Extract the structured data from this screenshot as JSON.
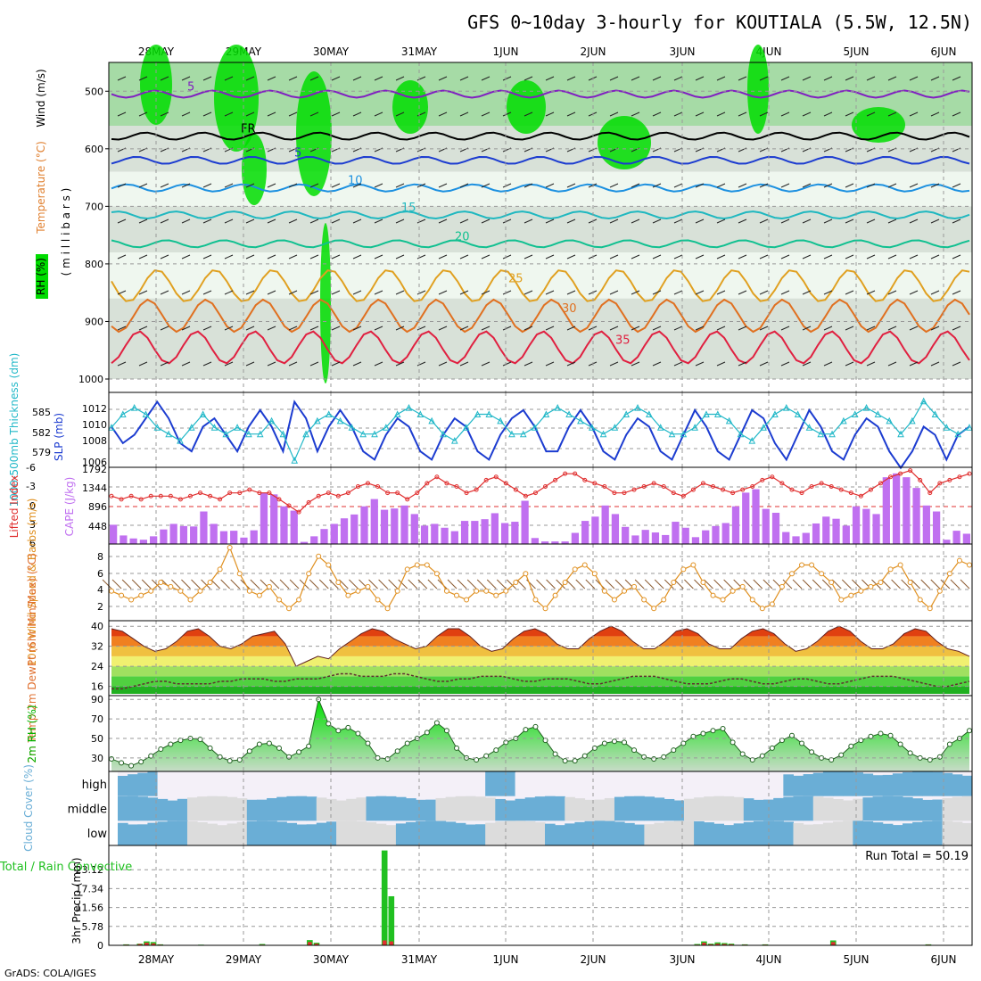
{
  "title": "GFS 0~10day 3-hourly for KOUTIALA (5.5W, 12.5N)",
  "credit": "GrADS: COLA/IGES",
  "dates": [
    "28MAY",
    "29MAY",
    "30MAY",
    "31MAY",
    "1JUN",
    "2JUN",
    "3JUN",
    "4JUN",
    "5JUN",
    "6JUN"
  ],
  "colors": {
    "rh_green": "#00dd00",
    "rh_mid": "#80cc80",
    "rh_light": "#e8f4e8",
    "rh_grey": "#c8d4c8",
    "slp": "#1c3cd0",
    "thickness": "#22b8c8",
    "lifted": "#e03030",
    "cape": "#c070f0",
    "wind": "#e09020",
    "rh2m": "#00b400",
    "cloud": "#6aaed6",
    "cloud_bg": "#f4f0f8",
    "rain": "#20c020",
    "conv": "#e03030"
  },
  "chart_data": [
    {
      "type": "heatmap",
      "panel": "upper-air",
      "ylabel_parts": [
        "RH (%)",
        "Temperature (°C)",
        "Wind (m/s)",
        "( m i l l i b a r s )"
      ],
      "yticks": [
        "500",
        "600",
        "700",
        "800",
        "900",
        "1000"
      ],
      "ylim": [
        450,
        1000
      ],
      "isotherms": [
        {
          "label": "5",
          "color": "#8020c0",
          "level": 505
        },
        {
          "label": "FR",
          "color": "#000000",
          "level": 578
        },
        {
          "label": "5",
          "color": "#1c3cd0",
          "level": 620
        },
        {
          "label": "10",
          "color": "#1c90e0",
          "level": 668
        },
        {
          "label": "15",
          "color": "#20b8c0",
          "level": 715
        },
        {
          "label": "20",
          "color": "#10c090",
          "level": 765
        },
        {
          "label": "25",
          "color": "#e0a020",
          "level": 838
        },
        {
          "label": "30",
          "color": "#e07020",
          "level": 890
        },
        {
          "label": "35",
          "color": "#e02040",
          "level": 945
        }
      ]
    },
    {
      "type": "line",
      "panel": "slp-thickness",
      "ylabel_left": "1000-500mb Thickness (dm)",
      "ylabel_right": "SLP (mb)",
      "yticks_left": [
        "585",
        "582",
        "579"
      ],
      "yticks_right": [
        "1012",
        "1010",
        "1008",
        "1006"
      ],
      "ylim_slp": [
        1005.5,
        1013.5
      ],
      "ylim_thickness": [
        577.5,
        587.5
      ],
      "series": [
        {
          "name": "SLP (mb)",
          "values": [
            1010,
            1008,
            1009,
            1011,
            1013,
            1011,
            1008,
            1007,
            1010,
            1011,
            1009,
            1007,
            1010,
            1012,
            1010,
            1007,
            1013,
            1011,
            1007,
            1010,
            1012,
            1010,
            1007,
            1006,
            1009,
            1011,
            1010,
            1007,
            1006,
            1009,
            1011,
            1010,
            1007,
            1006,
            1009,
            1011,
            1012,
            1010,
            1007,
            1007,
            1010,
            1012,
            1010,
            1007,
            1006,
            1009,
            1011,
            1010,
            1007,
            1006,
            1009,
            1012,
            1010,
            1007,
            1006,
            1009,
            1012,
            1011,
            1008,
            1006,
            1009,
            1012,
            1010,
            1007,
            1006,
            1009,
            1011,
            1010,
            1007,
            1005,
            1007,
            1010,
            1009,
            1006,
            1009,
            1010
          ]
        },
        {
          "name": "1000-500mb Thickness (dm)",
          "values": [
            583,
            585,
            586,
            585,
            583,
            582,
            581,
            583,
            585,
            583,
            582,
            583,
            582,
            582,
            584,
            582,
            578,
            582,
            584,
            585,
            584,
            583,
            582,
            582,
            583,
            585,
            586,
            585,
            584,
            582,
            581,
            583,
            585,
            585,
            584,
            582,
            582,
            583,
            585,
            586,
            585,
            584,
            583,
            582,
            583,
            585,
            586,
            585,
            583,
            582,
            582,
            583,
            585,
            585,
            584,
            582,
            581,
            583,
            585,
            586,
            585,
            583,
            582,
            582,
            584,
            585,
            586,
            585,
            584,
            582,
            584,
            587,
            585,
            583,
            582,
            583
          ]
        }
      ]
    },
    {
      "type": "bar",
      "panel": "cape-lifted",
      "ylabel_left": "Lifted Index",
      "ylabel_right": "CAPE (J/kg)",
      "yticks_left": [
        "-6",
        "-3",
        "0",
        "3",
        "6"
      ],
      "yticks_right": [
        "1792",
        "1344",
        "896",
        "448"
      ],
      "ylim_cape": [
        0,
        1792
      ],
      "ylim_li": [
        -6,
        6
      ],
      "series": [
        {
          "name": "CAPE (J/kg)",
          "values": [
            450,
            200,
            130,
            100,
            180,
            340,
            470,
            420,
            410,
            760,
            470,
            300,
            310,
            150,
            320,
            1200,
            1160,
            880,
            780,
            50,
            180,
            350,
            470,
            600,
            690,
            880,
            1050,
            800,
            830,
            900,
            700,
            430,
            470,
            380,
            300,
            540,
            540,
            580,
            720,
            490,
            520,
            1010,
            140,
            60,
            60,
            60,
            260,
            540,
            640,
            900,
            700,
            400,
            200,
            330,
            270,
            210,
            520,
            380,
            160,
            320,
            420,
            490,
            880,
            1200,
            1280,
            820,
            730,
            280,
            180,
            260,
            480,
            640,
            590,
            430,
            880,
            820,
            700,
            1560,
            1650,
            1560,
            1310,
            900,
            760,
            100,
            310,
            240
          ]
        },
        {
          "name": "Lifted Index",
          "values": [
            -1.5,
            -1,
            -1.5,
            -1,
            -1.5,
            -1.5,
            -1.5,
            -1,
            -1.5,
            -2,
            -1.5,
            -1,
            -2,
            -2,
            -2.5,
            -2,
            -2,
            -1,
            0,
            1,
            -0.5,
            -1.5,
            -2,
            -1.5,
            -2,
            -3,
            -3.5,
            -3,
            -2,
            -2,
            -1,
            -2,
            -3.5,
            -4.5,
            -3.5,
            -3,
            -2,
            -2.5,
            -4,
            -4.5,
            -3.5,
            -2.5,
            -1.5,
            -2,
            -3,
            -4,
            -5,
            -5,
            -4,
            -3.5,
            -3,
            -2,
            -2,
            -2.5,
            -3,
            -3.5,
            -3,
            -2,
            -1.5,
            -2.5,
            -3.5,
            -3,
            -2.5,
            -2,
            -2.5,
            -3,
            -4,
            -4.5,
            -3.5,
            -2.5,
            -2,
            -3,
            -3.5,
            -3,
            -2.5,
            -2,
            -1.5,
            -2.5,
            -3.5,
            -4.5,
            -5,
            -5.5,
            -4,
            -2,
            -3.5,
            -4,
            -4.5,
            -5
          ]
        }
      ]
    },
    {
      "type": "line",
      "panel": "wind-10m",
      "ylabel": "10m Wind Speed & Barbs (m/s)",
      "yticks": [
        "8",
        "6",
        "4",
        "2"
      ],
      "ylim": [
        1,
        9
      ],
      "series": [
        {
          "name": "10m Wind Speed",
          "values": [
            4,
            3.5,
            3,
            3.5,
            4,
            5,
            4.5,
            4,
            3,
            4,
            5,
            6.5,
            9,
            6,
            4,
            3.5,
            4.5,
            3,
            2,
            3,
            6,
            8,
            7,
            5,
            3.5,
            4,
            4.5,
            3,
            2,
            4,
            6.5,
            7,
            7,
            6,
            4,
            3.5,
            3,
            4,
            4,
            3.5,
            4,
            5,
            6,
            3,
            2,
            3.5,
            5,
            6.5,
            7,
            6,
            4,
            3,
            4,
            4.5,
            3,
            2,
            3,
            5,
            6.5,
            7,
            5,
            3.5,
            3,
            4,
            4.5,
            3,
            2,
            2.5,
            4.5,
            6,
            7,
            7,
            6,
            5,
            3,
            3.5,
            4,
            4.5,
            5,
            6.5,
            7,
            5,
            3,
            2,
            4,
            6,
            7.5,
            7
          ]
        }
      ]
    },
    {
      "type": "area",
      "panel": "temp-2m",
      "ylabel": "2m Temp 2m DewPt (6hr Min/Max) (°C)",
      "yticks": [
        "40",
        "32",
        "24",
        "16"
      ],
      "ylim": [
        13,
        41.5
      ],
      "series": [
        {
          "name": "2m Temp",
          "values": [
            39,
            38,
            35,
            32,
            30,
            31,
            34,
            38,
            39,
            36,
            32,
            31,
            33,
            36,
            37,
            38,
            33,
            24,
            26,
            28,
            27,
            31,
            34,
            37,
            39,
            38,
            35,
            33,
            31,
            32,
            36,
            39,
            39,
            36,
            32,
            30,
            31,
            35,
            38,
            39,
            37,
            33,
            31,
            31,
            35,
            38,
            40,
            38,
            34,
            31,
            31,
            34,
            38,
            39,
            37,
            33,
            31,
            31,
            35,
            38,
            39,
            37,
            33,
            30,
            31,
            34,
            38,
            40,
            38,
            34,
            31,
            31,
            33,
            37,
            39,
            38,
            34,
            31,
            30,
            28
          ]
        },
        {
          "name": "2m DewPt",
          "values": [
            15,
            15,
            16,
            17,
            18,
            18,
            17,
            17,
            17,
            17,
            18,
            18,
            19,
            19,
            19,
            18,
            18,
            19,
            19,
            19,
            20,
            21,
            21,
            20,
            20,
            20,
            21,
            21,
            20,
            19,
            18,
            18,
            19,
            19,
            20,
            20,
            20,
            19,
            18,
            18,
            19,
            19,
            19,
            18,
            17,
            17,
            18,
            19,
            20,
            20,
            20,
            19,
            18,
            17,
            17,
            17,
            18,
            19,
            19,
            18,
            17,
            17,
            18,
            19,
            19,
            18,
            17,
            17,
            18,
            19,
            20,
            20,
            20,
            19,
            18,
            17,
            16,
            16,
            17,
            18
          ]
        }
      ]
    },
    {
      "type": "area",
      "panel": "rh-2m",
      "ylabel": "2m RH (%)",
      "yticks": [
        "90",
        "70",
        "50",
        "30"
      ],
      "ylim": [
        18,
        92
      ],
      "series": [
        {
          "name": "2m RH",
          "values": [
            29,
            25,
            22,
            26,
            32,
            39,
            44,
            48,
            50,
            49,
            40,
            31,
            27,
            28,
            37,
            44,
            45,
            40,
            31,
            36,
            42,
            90,
            65,
            58,
            61,
            55,
            45,
            30,
            29,
            37,
            45,
            50,
            56,
            66,
            58,
            40,
            30,
            28,
            32,
            38,
            46,
            50,
            59,
            62,
            48,
            34,
            27,
            27,
            32,
            40,
            45,
            47,
            46,
            38,
            31,
            29,
            31,
            38,
            45,
            52,
            55,
            58,
            60,
            46,
            34,
            28,
            32,
            40,
            48,
            53,
            45,
            36,
            30,
            28,
            33,
            42,
            48,
            52,
            55,
            53,
            44,
            35,
            30,
            28,
            31,
            44,
            50,
            58
          ]
        }
      ]
    },
    {
      "type": "heatmap",
      "panel": "cloud-cover",
      "ylabel": "Cloud Cover (%)",
      "rows": [
        "high",
        "middle",
        "low"
      ]
    },
    {
      "type": "bar",
      "panel": "precip",
      "ylabel_left": "Total / Rain Convective",
      "ylabel": "3hr Precip (mm)",
      "yticks": [
        "23.12",
        "17.34",
        "11.56",
        "5.78",
        "0"
      ],
      "ylim": [
        0,
        28.9
      ],
      "annotation": "Run Total = 50.19",
      "series": [
        {
          "name": "Total / Rain",
          "values": [
            0,
            0,
            0.3,
            0,
            0.5,
            1.2,
            1.0,
            0.3,
            0,
            0,
            0,
            0,
            0,
            0.2,
            0,
            0,
            0,
            0,
            0,
            0,
            0,
            0,
            0.4,
            0,
            0,
            0,
            0,
            0,
            0,
            1.6,
            0.8,
            0,
            0,
            0,
            0,
            0,
            0,
            0,
            0,
            0,
            29,
            15,
            0,
            0,
            0,
            0,
            0,
            0,
            0,
            0,
            0,
            0,
            0,
            0,
            0,
            0,
            0,
            0,
            0,
            0,
            0,
            0,
            0,
            0,
            0,
            0,
            0,
            0,
            0,
            0,
            0,
            0,
            0,
            0,
            0,
            0,
            0,
            0,
            0,
            0,
            0,
            0,
            0,
            0,
            0,
            0,
            0.4,
            1.2,
            0.5,
            0.9,
            0.7,
            0.5,
            0,
            0.3,
            0,
            0,
            0.3,
            0,
            0,
            0,
            0,
            0,
            0,
            0,
            0,
            0,
            1.5,
            0,
            0,
            0,
            0,
            0,
            0,
            0,
            0,
            0,
            0,
            0,
            0,
            0,
            0.3,
            0,
            0,
            0,
            0,
            0,
            0
          ]
        },
        {
          "name": "Convective",
          "values": [
            0,
            0,
            0.2,
            0,
            0.4,
            0.8,
            0.6,
            0.2,
            0,
            0,
            0,
            0,
            0,
            0.1,
            0,
            0,
            0,
            0,
            0,
            0,
            0,
            0,
            0.2,
            0,
            0,
            0,
            0,
            0,
            0,
            1.0,
            0.5,
            0,
            0,
            0,
            0,
            0,
            0,
            0,
            0,
            0,
            1.5,
            1.2,
            0,
            0,
            0,
            0,
            0,
            0,
            0,
            0,
            0,
            0,
            0,
            0,
            0,
            0,
            0,
            0,
            0,
            0,
            0,
            0,
            0,
            0,
            0,
            0,
            0,
            0,
            0,
            0,
            0,
            0,
            0,
            0,
            0,
            0,
            0,
            0,
            0,
            0,
            0,
            0,
            0,
            0,
            0,
            0,
            0.2,
            0.8,
            0.3,
            0.5,
            0.4,
            0.3,
            0,
            0.2,
            0,
            0,
            0.2,
            0,
            0,
            0,
            0,
            0,
            0,
            0,
            0,
            0,
            1.0,
            0,
            0,
            0,
            0,
            0,
            0,
            0,
            0,
            0,
            0,
            0,
            0,
            0,
            0.2,
            0,
            0,
            0,
            0,
            0,
            0
          ]
        }
      ]
    }
  ]
}
